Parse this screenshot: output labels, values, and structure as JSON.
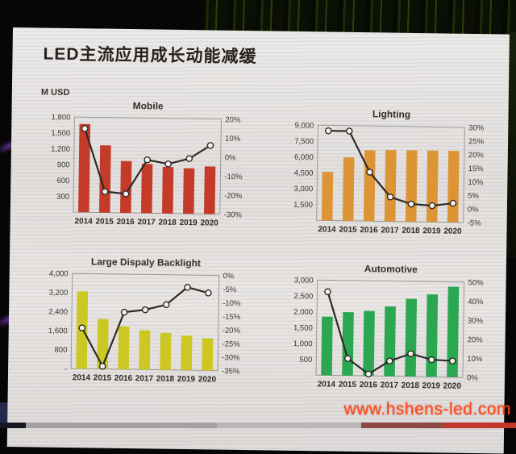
{
  "slide": {
    "title": "LED主流应用成长动能减缓",
    "unit_label": "M USD",
    "watermark": "www.hshens-led.com"
  },
  "colors": {
    "mobile_bar": "#c53b2a",
    "lighting_bar": "#dd9434",
    "backlight_bar": "#cdc723",
    "automotive_bar": "#2aa750",
    "trend_line": "#2e2a27",
    "marker_fill": "#f4f2f0"
  },
  "chart_data": [
    {
      "type": "bar",
      "title": "Mobile",
      "bar_color": "#c53b2a",
      "categories": [
        "2014",
        "2015",
        "2016",
        "2017",
        "2018",
        "2019",
        "2020"
      ],
      "series": [
        {
          "name": "revenue_musd",
          "type": "bar",
          "values": [
            1670,
            1270,
            980,
            930,
            880,
            860,
            900
          ]
        },
        {
          "name": "yoy_growth_pct",
          "type": "line",
          "values": [
            14,
            -19,
            -20,
            -2,
            -4,
            -1,
            6
          ]
        }
      ],
      "left_axis": {
        "label": "M USD",
        "ticks": [
          "1,800",
          "1,500",
          "1,200",
          "900",
          "600",
          "300"
        ],
        "tick_values": [
          1800,
          1500,
          1200,
          900,
          600,
          300
        ],
        "min": 0,
        "max": 1800
      },
      "right_axis": {
        "ticks": [
          "20%",
          "10%",
          "0%",
          "-10%",
          "-20%",
          "-30%"
        ],
        "tick_values": [
          20,
          10,
          0,
          -10,
          -20,
          -30
        ],
        "min": -30,
        "max": 20
      },
      "legend_position": "none",
      "grid": false
    },
    {
      "type": "bar",
      "title": "Lighting",
      "bar_color": "#dd9434",
      "categories": [
        "2014",
        "2015",
        "2016",
        "2017",
        "2018",
        "2019",
        "2020"
      ],
      "series": [
        {
          "name": "revenue_musd",
          "type": "bar",
          "values": [
            4600,
            6000,
            6700,
            6750,
            6750,
            6750,
            6750
          ]
        },
        {
          "name": "yoy_growth_pct",
          "type": "line",
          "values": [
            28,
            28,
            13,
            4,
            1.5,
            1,
            2
          ]
        }
      ],
      "left_axis": {
        "label": "M USD",
        "ticks": [
          "9,000",
          "7,500",
          "6,000",
          "4,500",
          "3,000",
          "1,500"
        ],
        "tick_values": [
          9000,
          7500,
          6000,
          4500,
          3000,
          1500
        ],
        "min": 0,
        "max": 9000
      },
      "right_axis": {
        "ticks": [
          "30%",
          "25%",
          "20%",
          "15%",
          "10%",
          "5%",
          "0%",
          "-5%"
        ],
        "tick_values": [
          30,
          25,
          20,
          15,
          10,
          5,
          0,
          -5
        ],
        "min": -5,
        "max": 30
      },
      "legend_position": "none",
      "grid": false
    },
    {
      "type": "bar",
      "title": "Large Dispaly Backlight",
      "bar_color": "#cdc723",
      "categories": [
        "2014",
        "2015",
        "2016",
        "2017",
        "2018",
        "2019",
        "2020"
      ],
      "series": [
        {
          "name": "revenue_musd",
          "type": "bar",
          "values": [
            3250,
            2100,
            1800,
            1650,
            1550,
            1450,
            1350
          ]
        },
        {
          "name": "yoy_growth_pct",
          "type": "line",
          "values": [
            -20,
            -34,
            -14,
            -13,
            -11,
            -4.5,
            -6.5
          ]
        }
      ],
      "left_axis": {
        "label": "M USD",
        "ticks": [
          "4,000",
          "3,200",
          "2,400",
          "1,600",
          "800",
          "-"
        ],
        "tick_values": [
          4000,
          3200,
          2400,
          1600,
          800,
          0
        ],
        "min": 0,
        "max": 4000
      },
      "right_axis": {
        "ticks": [
          "0%",
          "-5%",
          "-10%",
          "-15%",
          "-20%",
          "-25%",
          "-30%",
          "-35%"
        ],
        "tick_values": [
          0,
          -5,
          -10,
          -15,
          -20,
          -25,
          -30,
          -35
        ],
        "min": -35,
        "max": 0
      },
      "legend_position": "none",
      "grid": false
    },
    {
      "type": "bar",
      "title": "Automotive",
      "bar_color": "#2aa750",
      "categories": [
        "2014",
        "2015",
        "2016",
        "2017",
        "2018",
        "2019",
        "2020"
      ],
      "series": [
        {
          "name": "revenue_musd",
          "type": "bar",
          "values": [
            1850,
            2000,
            2050,
            2200,
            2450,
            2600,
            2850
          ]
        },
        {
          "name": "yoy_growth_pct",
          "type": "line",
          "values": [
            44,
            9,
            1,
            8,
            12,
            9,
            8.5
          ]
        }
      ],
      "left_axis": {
        "label": "M USD",
        "ticks": [
          "3,000",
          "2,500",
          "2,000",
          "1,500",
          "1,000",
          "500"
        ],
        "tick_values": [
          3000,
          2500,
          2000,
          1500,
          1000,
          500
        ],
        "min": 0,
        "max": 3000
      },
      "right_axis": {
        "ticks": [
          "50%",
          "40%",
          "30%",
          "20%",
          "10%",
          "0%"
        ],
        "tick_values": [
          50,
          40,
          30,
          20,
          10,
          0
        ],
        "min": 0,
        "max": 50
      },
      "legend_position": "none",
      "grid": false
    }
  ]
}
